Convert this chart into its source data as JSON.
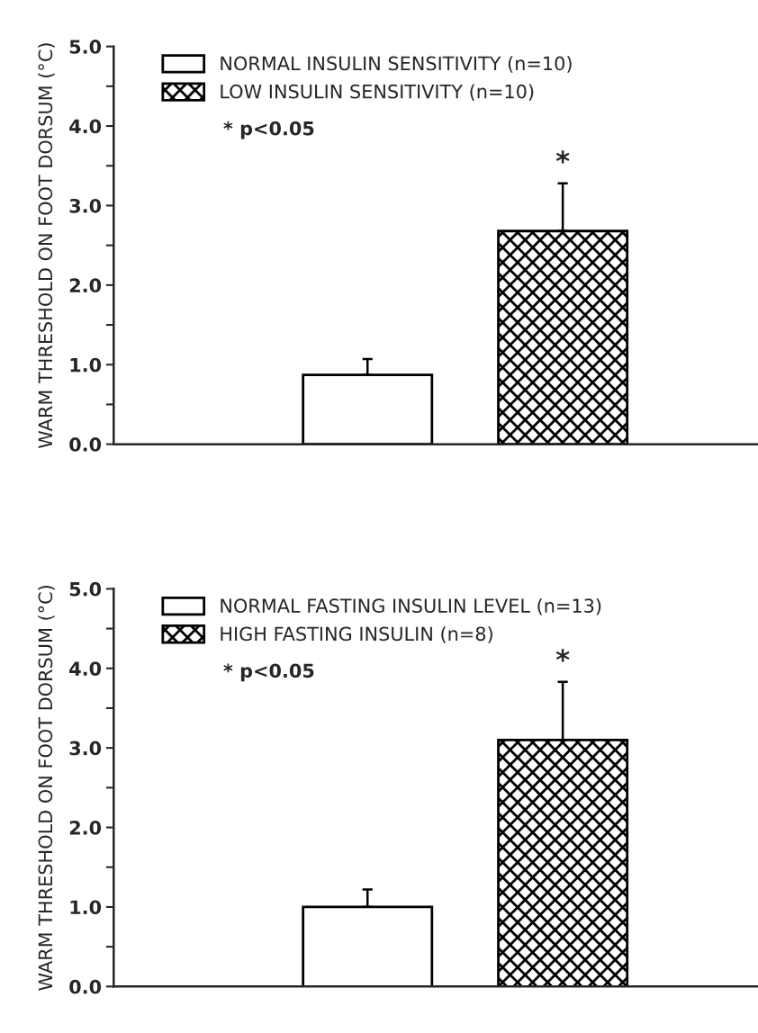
{
  "chart_data": [
    {
      "type": "bar",
      "ylabel": "WARM THRESHOLD ON FOOT DORSUM (°C)",
      "categories": [
        null,
        null
      ],
      "series": [
        {
          "name": "NORMAL INSULIN SENSITIVITY (n=10)",
          "color": "#ffffff",
          "values": [
            0.87,
            null
          ],
          "errors": [
            0.2,
            null
          ]
        },
        {
          "name": "LOW INSULIN SENSITIVITY (n=10)",
          "color": "#000000",
          "values": [
            null,
            2.68
          ],
          "errors": [
            null,
            0.6
          ]
        }
      ],
      "ylim": [
        0,
        5
      ],
      "yticks": [
        {
          "value": 0,
          "label": "0.0"
        },
        {
          "value": 0.5,
          "label": null
        },
        {
          "value": 1,
          "label": "1.0"
        },
        {
          "value": 1.5,
          "label": null
        },
        {
          "value": 2,
          "label": "2.0"
        },
        {
          "value": 2.5,
          "label": null
        },
        {
          "value": 3,
          "label": "3.0"
        },
        {
          "value": 3.5,
          "label": null
        },
        {
          "value": 4,
          "label": "4.0"
        },
        {
          "value": 4.5,
          "label": null
        },
        {
          "value": 5,
          "label": "5.0"
        }
      ],
      "annotations": [
        "* p<0.05",
        "*"
      ],
      "legend": "top left",
      "grid": false
    },
    {
      "type": "bar",
      "ylabel": "WARM THRESHOLD ON FOOT DORSUM (°C)",
      "categories": [
        null,
        null
      ],
      "series": [
        {
          "name": "NORMAL FASTING INSULIN LEVEL (n=13)",
          "color": "#ffffff",
          "values": [
            1.0,
            null
          ],
          "errors": [
            0.22,
            null
          ]
        },
        {
          "name": "HIGH FASTING INSULIN (n=8)",
          "color": "#000000",
          "values": [
            null,
            3.1
          ],
          "errors": [
            null,
            0.73
          ]
        }
      ],
      "ylim": [
        0,
        5
      ],
      "yticks": [
        {
          "value": 0,
          "label": "0.0"
        },
        {
          "value": 0.5,
          "label": null
        },
        {
          "value": 1,
          "label": "1.0"
        },
        {
          "value": 1.5,
          "label": null
        },
        {
          "value": 2,
          "label": "2.0"
        },
        {
          "value": 2.5,
          "label": null
        },
        {
          "value": 3,
          "label": "3.0"
        },
        {
          "value": 3.5,
          "label": null
        },
        {
          "value": 4,
          "label": "4.0"
        },
        {
          "value": 4.5,
          "label": null
        },
        {
          "value": 5,
          "label": "5.0"
        }
      ],
      "annotations": [
        "* p<0.05",
        "*"
      ],
      "legend": "top left",
      "grid": false
    }
  ]
}
